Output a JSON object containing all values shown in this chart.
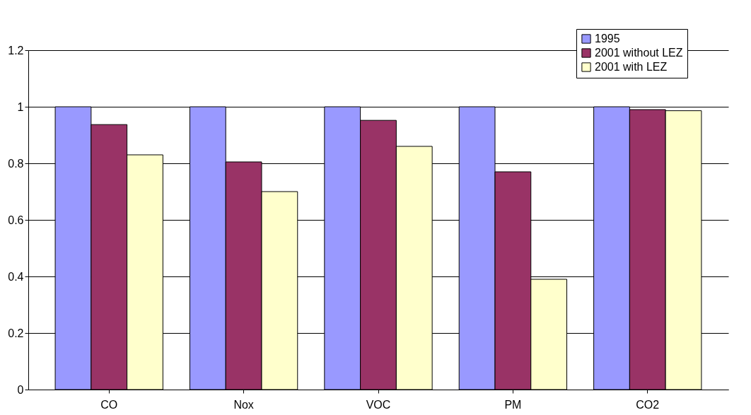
{
  "chart_data": {
    "type": "bar",
    "categories": [
      "CO",
      "Nox",
      "VOC",
      "PM",
      "CO2"
    ],
    "series": [
      {
        "name": "1995",
        "color": "#9999ff",
        "values": [
          1,
          1,
          1,
          1,
          1
        ]
      },
      {
        "name": "2001 without LEZ",
        "color": "#993366",
        "values": [
          0.937,
          0.805,
          0.952,
          0.77,
          0.99
        ]
      },
      {
        "name": "2001 with LEZ",
        "color": "#ffffcc",
        "values": [
          0.83,
          0.7,
          0.86,
          0.39,
          0.986
        ]
      }
    ],
    "ylim": [
      0,
      1.2
    ],
    "yticks": [
      0,
      0.2,
      0.4,
      0.6,
      0.8,
      1,
      1.2
    ],
    "grid": "y",
    "legend": "top right"
  }
}
